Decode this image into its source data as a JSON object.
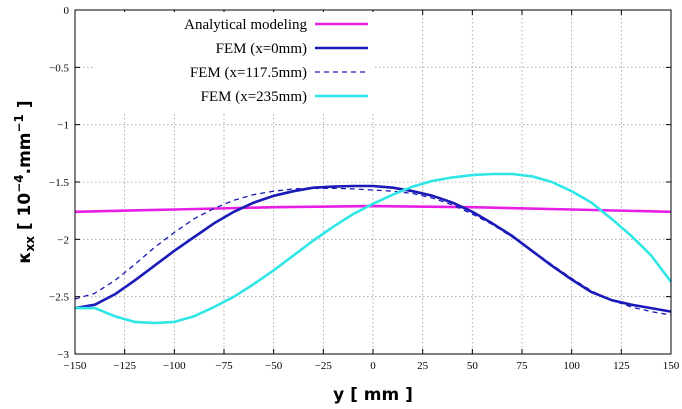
{
  "chart_data": {
    "type": "line",
    "xlabel": "y [ mm ]",
    "ylabel": {
      "base": "κ",
      "sub": "xx",
      "mid": " [ 10",
      "sup": "−4",
      "mid2": ".mm",
      "sup2": "−1",
      "end": " ]"
    },
    "xlim": [
      -150,
      150
    ],
    "ylim": [
      -3,
      0
    ],
    "xticks": [
      -150,
      -125,
      -100,
      -75,
      -50,
      -25,
      0,
      25,
      50,
      75,
      100,
      125,
      150
    ],
    "xtick_labels": [
      "−150",
      "−125",
      "−100",
      "−75",
      "−50",
      "−25",
      "0",
      "25",
      "50",
      "75",
      "100",
      "125",
      "150"
    ],
    "yticks": [
      0,
      -0.5,
      -1,
      -1.5,
      -2,
      -2.5,
      -3
    ],
    "ytick_labels": [
      "0",
      "−0.5",
      "−1",
      "−1.5",
      "−2",
      "−2.5",
      "−3"
    ],
    "grid": true,
    "legend_position": "top-left",
    "series": [
      {
        "name": "Analytical modeling",
        "color": "#e61ee6",
        "dash": "solid",
        "x": [
          -150,
          -100,
          -50,
          0,
          50,
          100,
          150
        ],
        "y": [
          -1.76,
          -1.74,
          -1.72,
          -1.71,
          -1.72,
          -1.74,
          -1.76
        ]
      },
      {
        "name": "FEM (x=0mm)",
        "color": "#1a1ab8",
        "dash": "solid",
        "x": [
          -150,
          -140,
          -130,
          -120,
          -110,
          -100,
          -90,
          -80,
          -70,
          -60,
          -50,
          -40,
          -30,
          -20,
          -10,
          0,
          10,
          20,
          30,
          40,
          50,
          60,
          70,
          80,
          90,
          100,
          110,
          120,
          130,
          140,
          150
        ],
        "y": [
          -2.6,
          -2.57,
          -2.48,
          -2.36,
          -2.23,
          -2.1,
          -1.98,
          -1.86,
          -1.76,
          -1.68,
          -1.62,
          -1.58,
          -1.55,
          -1.54,
          -1.535,
          -1.535,
          -1.55,
          -1.58,
          -1.62,
          -1.68,
          -1.76,
          -1.86,
          -1.97,
          -2.1,
          -2.23,
          -2.35,
          -2.46,
          -2.53,
          -2.57,
          -2.6,
          -2.63
        ]
      },
      {
        "name": "FEM (x=117.5mm)",
        "color": "#1a1ab8",
        "dash": "dashed",
        "x": [
          -150,
          -140,
          -130,
          -120,
          -110,
          -100,
          -90,
          -80,
          -70,
          -60,
          -50,
          -40,
          -30,
          -20,
          -10,
          0,
          10,
          20,
          30,
          40,
          50,
          60,
          70,
          80,
          90,
          100,
          110,
          120,
          130,
          140,
          150
        ],
        "y": [
          -2.52,
          -2.47,
          -2.36,
          -2.22,
          -2.07,
          -1.94,
          -1.82,
          -1.73,
          -1.66,
          -1.61,
          -1.58,
          -1.56,
          -1.555,
          -1.555,
          -1.56,
          -1.57,
          -1.58,
          -1.6,
          -1.64,
          -1.7,
          -1.78,
          -1.87,
          -1.98,
          -2.1,
          -2.22,
          -2.34,
          -2.45,
          -2.53,
          -2.59,
          -2.63,
          -2.66
        ]
      },
      {
        "name": "FEM (x=235mm)",
        "color": "#2ee6e6",
        "dash": "solid",
        "x": [
          -150,
          -140,
          -130,
          -120,
          -110,
          -100,
          -90,
          -80,
          -70,
          -60,
          -50,
          -40,
          -30,
          -20,
          -10,
          0,
          10,
          20,
          30,
          40,
          50,
          60,
          70,
          80,
          90,
          100,
          110,
          120,
          130,
          140,
          150
        ],
        "y": [
          -2.6,
          -2.6,
          -2.67,
          -2.72,
          -2.73,
          -2.72,
          -2.67,
          -2.59,
          -2.5,
          -2.39,
          -2.27,
          -2.14,
          -2.01,
          -1.89,
          -1.78,
          -1.69,
          -1.61,
          -1.54,
          -1.49,
          -1.46,
          -1.44,
          -1.43,
          -1.43,
          -1.45,
          -1.5,
          -1.58,
          -1.68,
          -1.82,
          -1.97,
          -2.14,
          -2.37
        ]
      }
    ]
  }
}
